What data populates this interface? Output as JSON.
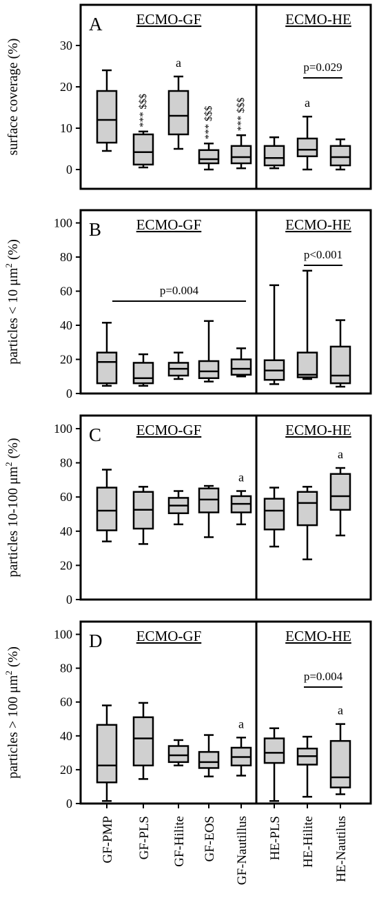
{
  "chart_data": [
    {
      "panel": "A",
      "type": "box",
      "ylabel": "surface coverage (%)",
      "ylim": [
        -5,
        38
      ],
      "yticks": [
        0,
        10,
        20,
        30
      ],
      "groups": [
        "ECMO-GF",
        "ECMO-HE"
      ],
      "boxes": [
        {
          "group": "GF",
          "min": 4.5,
          "q1": 6.5,
          "median": 12,
          "q3": 19,
          "max": 24,
          "annotation": ""
        },
        {
          "group": "GF",
          "min": 0.5,
          "q1": 1.2,
          "median": 4.2,
          "q3": 8.5,
          "max": 9.2,
          "annotation": "*** $$$"
        },
        {
          "group": "GF",
          "min": 5,
          "q1": 8.5,
          "median": 13,
          "q3": 19,
          "max": 22.5,
          "annotation": "a"
        },
        {
          "group": "GF",
          "min": 0,
          "q1": 1.5,
          "median": 2.5,
          "q3": 4.7,
          "max": 6.3,
          "annotation": "*** $$$"
        },
        {
          "group": "GF",
          "min": 0.3,
          "q1": 1.5,
          "median": 3,
          "q3": 5.7,
          "max": 8.3,
          "annotation": "*** $$$"
        },
        {
          "group": "HE",
          "min": 0.3,
          "q1": 1,
          "median": 2.8,
          "q3": 5.7,
          "max": 7.8,
          "annotation": ""
        },
        {
          "group": "HE",
          "min": 0,
          "q1": 3.2,
          "median": 4.8,
          "q3": 7.5,
          "max": 12.8,
          "annotation": "a"
        },
        {
          "group": "HE",
          "min": 0,
          "q1": 1,
          "median": 3,
          "q3": 5.7,
          "max": 7.3,
          "annotation": ""
        }
      ],
      "comparisons": [
        {
          "from": 6,
          "to": 7,
          "label": "p=0.029"
        }
      ]
    },
    {
      "panel": "B",
      "type": "box",
      "ylabel": "particles < 10 μm",
      "ylabel_sup": "2",
      "ylabel_suffix": " (%)",
      "ylim": [
        0,
        110
      ],
      "yticks": [
        0,
        20,
        40,
        60,
        80,
        100
      ],
      "groups": [
        "ECMO-GF",
        "ECMO-HE"
      ],
      "boxes": [
        {
          "group": "GF",
          "min": 4.5,
          "q1": 6,
          "median": 18.5,
          "q3": 24,
          "max": 41.5,
          "annotation": ""
        },
        {
          "group": "GF",
          "min": 4.5,
          "q1": 6,
          "median": 9,
          "q3": 18,
          "max": 23,
          "annotation": ""
        },
        {
          "group": "GF",
          "min": 8.5,
          "q1": 10.5,
          "median": 14.5,
          "q3": 18,
          "max": 24,
          "annotation": ""
        },
        {
          "group": "GF",
          "min": 7,
          "q1": 9,
          "median": 13,
          "q3": 19,
          "max": 42.5,
          "annotation": ""
        },
        {
          "group": "GF",
          "min": 10,
          "q1": 11,
          "median": 14.5,
          "q3": 20,
          "max": 26.5,
          "annotation": ""
        },
        {
          "group": "HE",
          "min": 5.5,
          "q1": 8,
          "median": 13.5,
          "q3": 19.5,
          "max": 63.5,
          "annotation": ""
        },
        {
          "group": "HE",
          "min": 8.5,
          "q1": 9.5,
          "median": 11,
          "q3": 24,
          "max": 72,
          "annotation": ""
        },
        {
          "group": "HE",
          "min": 4,
          "q1": 6,
          "median": 10.5,
          "q3": 27.5,
          "max": 43,
          "annotation": ""
        }
      ],
      "comparisons": [
        {
          "from": 0,
          "to": 4,
          "label": "p=0.004"
        },
        {
          "from": 6,
          "to": 7,
          "label": "p<0.001"
        }
      ]
    },
    {
      "panel": "C",
      "type": "box",
      "ylabel": "particles 10-100 μm",
      "ylabel_sup": "2",
      "ylabel_suffix": " (%)",
      "ylim": [
        0,
        110
      ],
      "yticks": [
        0,
        20,
        40,
        60,
        80,
        100
      ],
      "groups": [
        "ECMO-GF",
        "ECMO-HE"
      ],
      "boxes": [
        {
          "group": "GF",
          "min": 34,
          "q1": 40.5,
          "median": 52,
          "q3": 65.5,
          "max": 76,
          "annotation": ""
        },
        {
          "group": "GF",
          "min": 32.5,
          "q1": 41.5,
          "median": 52.5,
          "q3": 63,
          "max": 66,
          "annotation": ""
        },
        {
          "group": "GF",
          "min": 44,
          "q1": 50.5,
          "median": 55,
          "q3": 59.5,
          "max": 63.5,
          "annotation": ""
        },
        {
          "group": "GF",
          "min": 36.5,
          "q1": 51,
          "median": 58.5,
          "q3": 65,
          "max": 66.5,
          "annotation": ""
        },
        {
          "group": "GF",
          "min": 44,
          "q1": 51,
          "median": 56,
          "q3": 60.5,
          "max": 63.5,
          "annotation": "a"
        },
        {
          "group": "HE",
          "min": 31,
          "q1": 41,
          "median": 52,
          "q3": 59,
          "max": 65.5,
          "annotation": ""
        },
        {
          "group": "HE",
          "min": 23.5,
          "q1": 43.5,
          "median": 56.5,
          "q3": 63,
          "max": 66,
          "annotation": ""
        },
        {
          "group": "HE",
          "min": 37.5,
          "q1": 52.5,
          "median": 60.5,
          "q3": 73.5,
          "max": 77,
          "annotation": "a"
        }
      ],
      "comparisons": []
    },
    {
      "panel": "D",
      "type": "box",
      "ylabel": "particles > 100 μm",
      "ylabel_sup": "2",
      "ylabel_suffix": " (%)",
      "ylim": [
        0,
        110
      ],
      "yticks": [
        0,
        20,
        40,
        60,
        80,
        100
      ],
      "groups": [
        "ECMO-GF",
        "ECMO-HE"
      ],
      "boxes": [
        {
          "group": "GF",
          "min": 1.5,
          "q1": 12.5,
          "median": 22.5,
          "q3": 46.5,
          "max": 58,
          "annotation": ""
        },
        {
          "group": "GF",
          "min": 14.5,
          "q1": 22.5,
          "median": 38.5,
          "q3": 51,
          "max": 59.5,
          "annotation": ""
        },
        {
          "group": "GF",
          "min": 22.5,
          "q1": 24.5,
          "median": 28.5,
          "q3": 34,
          "max": 37.5,
          "annotation": ""
        },
        {
          "group": "GF",
          "min": 16,
          "q1": 21,
          "median": 24.5,
          "q3": 30.5,
          "max": 40.5,
          "annotation": ""
        },
        {
          "group": "GF",
          "min": 16.5,
          "q1": 22.5,
          "median": 27.5,
          "q3": 33,
          "max": 39,
          "annotation": "a"
        },
        {
          "group": "HE",
          "min": 1.5,
          "q1": 24,
          "median": 30,
          "q3": 38.5,
          "max": 44.5,
          "annotation": ""
        },
        {
          "group": "HE",
          "min": 4,
          "q1": 23,
          "median": 28,
          "q3": 32.5,
          "max": 39.5,
          "annotation": ""
        },
        {
          "group": "HE",
          "min": 5.5,
          "q1": 9.5,
          "median": 15.5,
          "q3": 37,
          "max": 47,
          "annotation": "a"
        }
      ],
      "comparisons": [
        {
          "from": 6,
          "to": 7,
          "label": "p=0.004"
        }
      ]
    }
  ],
  "categories": [
    "GF-PMP",
    "GF-PLS",
    "GF-Hilite",
    "GF-EOS",
    "GF-Nautillus",
    "HE-PLS",
    "HE-Hilite",
    "HE-Nautilus"
  ],
  "colors": {
    "box_fill": "#d0d0d0",
    "stroke": "#000000",
    "background": "#ffffff"
  }
}
